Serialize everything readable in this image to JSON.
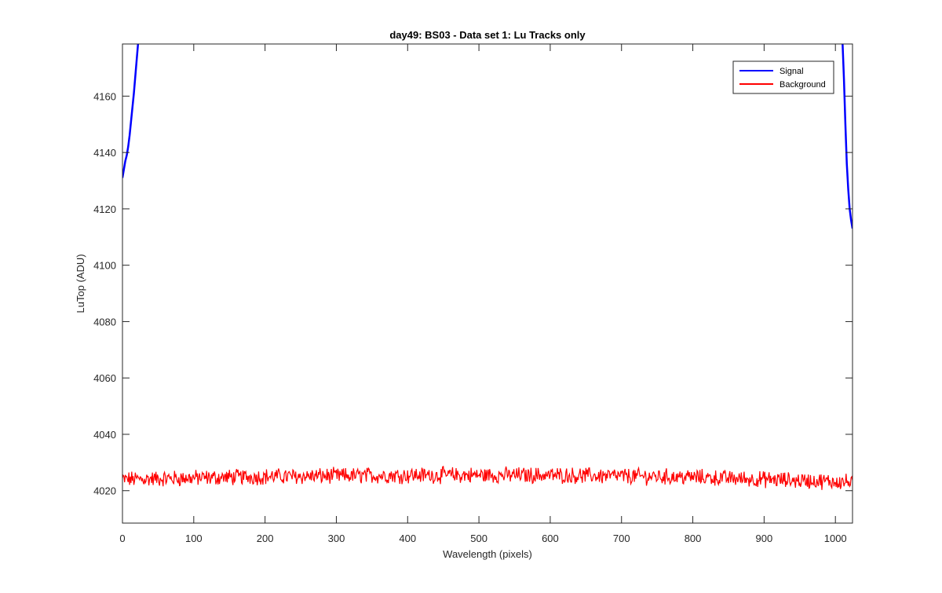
{
  "chart_data": {
    "type": "line",
    "title": "day49: BS03 - Data set 1: Lu Tracks only",
    "xlabel": "Wavelength (pixels)",
    "ylabel": "LuTop (ADU)",
    "xlim": [
      0,
      1024
    ],
    "ylim": [
      4008.5,
      4178.5
    ],
    "xticks": [
      0,
      100,
      200,
      300,
      400,
      500,
      600,
      700,
      800,
      900,
      1000
    ],
    "yticks": [
      4020,
      4040,
      4060,
      4080,
      4100,
      4120,
      4140,
      4160
    ],
    "grid": false,
    "legend_position": "top-right",
    "series": [
      {
        "name": "Signal",
        "color": "#0000ff",
        "segments": [
          {
            "x": [
              0,
              2,
              4,
              6,
              8,
              10,
              12,
              14,
              16,
              18,
              20,
              22
            ],
            "y": [
              4131,
              4134,
              4137,
              4139,
              4142,
              4146,
              4151,
              4156,
              4161,
              4167,
              4173,
              4179
            ]
          },
          {
            "x": [
              1010,
              1012,
              1014,
              1016,
              1018,
              1020,
              1022,
              1024
            ],
            "y": [
              4179,
              4166,
              4150,
              4136,
              4127,
              4120,
              4116,
              4113
            ]
          }
        ]
      },
      {
        "name": "Background",
        "color": "#ff0000",
        "x_start": 0,
        "x_end": 1024,
        "baseline": [
          {
            "x": 0,
            "y": 4024
          },
          {
            "x": 200,
            "y": 4025
          },
          {
            "x": 400,
            "y": 4025.5
          },
          {
            "x": 600,
            "y": 4025.5
          },
          {
            "x": 800,
            "y": 4024.8
          },
          {
            "x": 900,
            "y": 4024
          },
          {
            "x": 1024,
            "y": 4023
          }
        ],
        "noise_amplitude": 2.5
      }
    ]
  }
}
